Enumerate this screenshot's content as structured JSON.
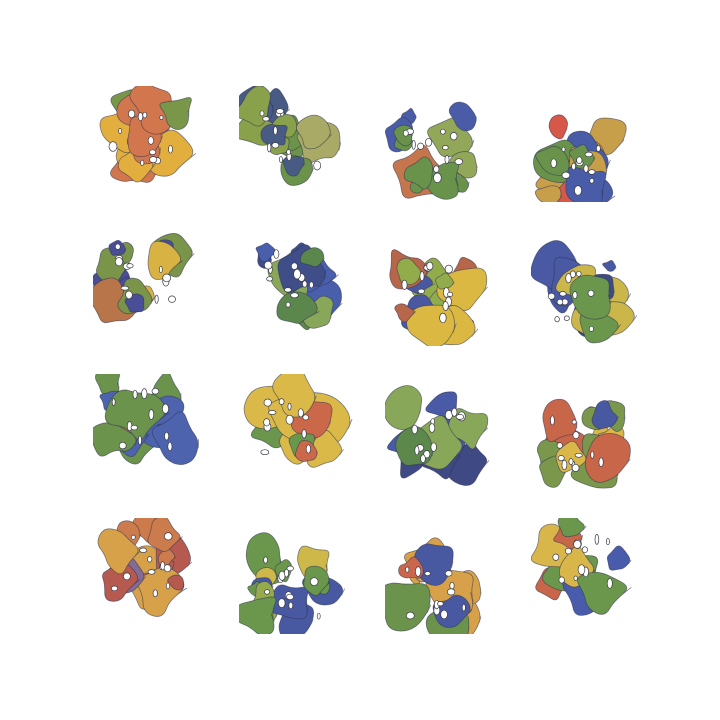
{
  "tiles": [
    {
      "id": "sample-1",
      "palette": [
        "#e0a82e",
        "#cf6b3e",
        "#6f8f3a",
        "#b24a35"
      ],
      "seed": 11
    },
    {
      "id": "sample-2",
      "palette": [
        "#7f9a3c",
        "#5f8a3a",
        "#a2a35a",
        "#394e7a"
      ],
      "seed": 23
    },
    {
      "id": "sample-3",
      "palette": [
        "#5d8a3b",
        "#3b4fa0",
        "#c26b3d",
        "#8aa04a"
      ],
      "seed": 37
    },
    {
      "id": "sample-4",
      "palette": [
        "#3a4fa0",
        "#c3963b",
        "#5d8a3b",
        "#d24a3a"
      ],
      "seed": 41
    },
    {
      "id": "sample-5",
      "palette": [
        "#3b3f8f",
        "#b36a3a",
        "#d6ac35",
        "#6f8b3a"
      ],
      "seed": 53
    },
    {
      "id": "sample-6",
      "palette": [
        "#4f7d3d",
        "#3a52a6",
        "#7fa04a",
        "#2f3f80"
      ],
      "seed": 67
    },
    {
      "id": "sample-7",
      "palette": [
        "#8aa63c",
        "#d7b331",
        "#b15a3a",
        "#3a4a9a"
      ],
      "seed": 71
    },
    {
      "id": "sample-8",
      "palette": [
        "#5f8f3d",
        "#3a4c9c",
        "#c6b03a",
        "#2f3a78"
      ],
      "seed": 83
    },
    {
      "id": "sample-9",
      "palette": [
        "#3e56a8",
        "#5f8a3d",
        "#c46a3c",
        "#2d3a7a"
      ],
      "seed": 97
    },
    {
      "id": "sample-10",
      "palette": [
        "#5f8f3d",
        "#c65c3a",
        "#d7b43a",
        "#3b4b9a"
      ],
      "seed": 101
    },
    {
      "id": "sample-11",
      "palette": [
        "#4f7e3d",
        "#3a4da0",
        "#7fa04a",
        "#2f3a7a"
      ],
      "seed": 113
    },
    {
      "id": "sample-12",
      "palette": [
        "#d6b23a",
        "#c45a3a",
        "#6f8f3d",
        "#3a4c9a"
      ],
      "seed": 127
    },
    {
      "id": "sample-13",
      "palette": [
        "#c8713d",
        "#b04c40",
        "#7a5f8a",
        "#d39a3a"
      ],
      "seed": 131
    },
    {
      "id": "sample-14",
      "palette": [
        "#c9b23a",
        "#5f8f3d",
        "#8da33e",
        "#3a4c9a"
      ],
      "seed": 149
    },
    {
      "id": "sample-15",
      "palette": [
        "#c65a3d",
        "#d49a3a",
        "#5f8a3d",
        "#3a4c9a"
      ],
      "seed": 151
    },
    {
      "id": "sample-16",
      "palette": [
        "#3a4ea4",
        "#d6b03a",
        "#5f8f3d",
        "#c45a3a"
      ],
      "seed": 163
    }
  ]
}
